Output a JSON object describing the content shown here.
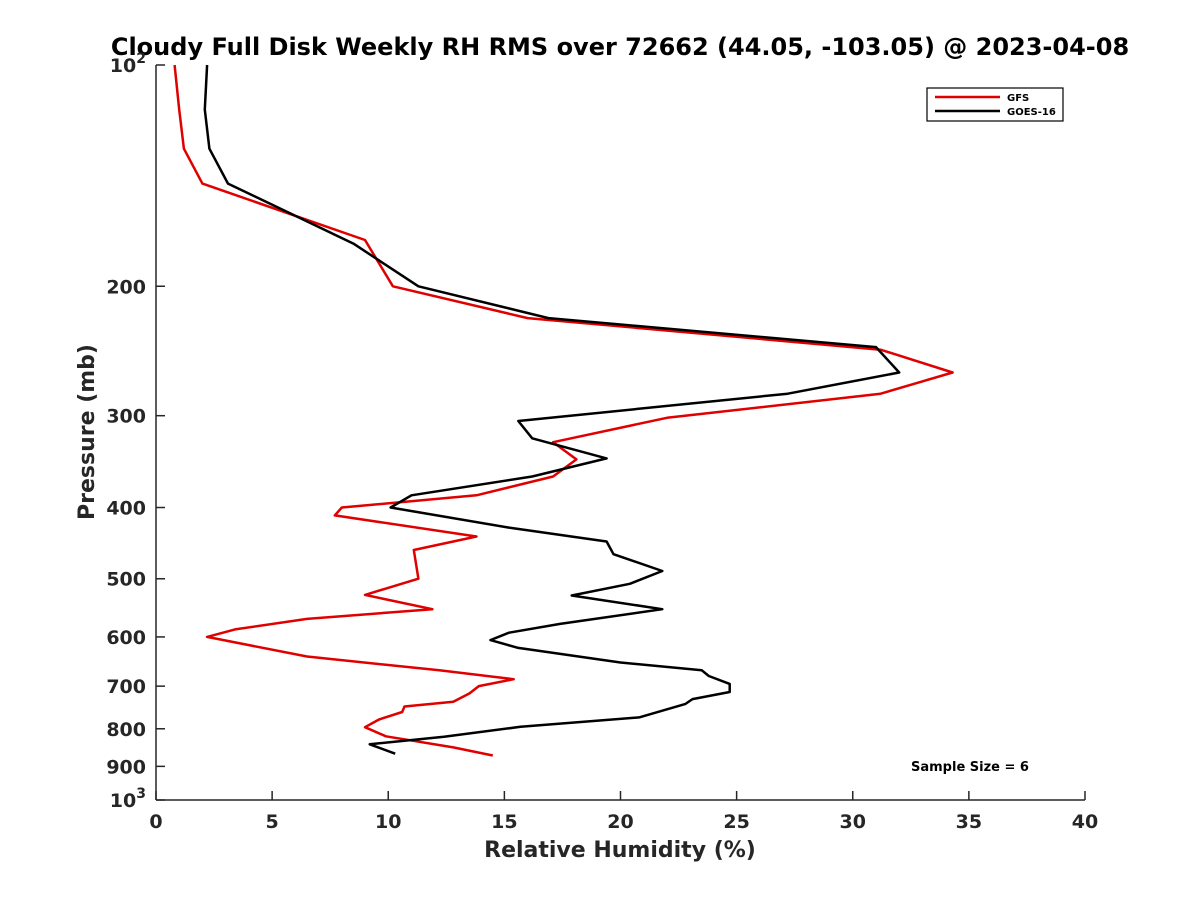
{
  "chart_data": {
    "type": "line",
    "title": "Cloudy Full Disk Weekly RH RMS over 72662 (44.05, -103.05) @ 2023-04-08",
    "xlabel": "Relative Humidity (%)",
    "ylabel": "Pressure (mb)",
    "xlim": [
      0,
      40
    ],
    "ylim": [
      100,
      1000
    ],
    "y_scale": "log",
    "y_reversed": true,
    "x_ticks": [
      "0",
      "5",
      "10",
      "15",
      "20",
      "25",
      "30",
      "35",
      "40"
    ],
    "y_ticks": [
      {
        "value": 100,
        "label": "10",
        "sup": "2"
      },
      {
        "value": 200,
        "label": "200"
      },
      {
        "value": 300,
        "label": "300"
      },
      {
        "value": 400,
        "label": "400"
      },
      {
        "value": 500,
        "label": "500"
      },
      {
        "value": 600,
        "label": "600"
      },
      {
        "value": 700,
        "label": "700"
      },
      {
        "value": 800,
        "label": "800"
      },
      {
        "value": 900,
        "label": "900"
      },
      {
        "value": 1000,
        "label": "10",
        "sup": "3"
      }
    ],
    "grid": false,
    "legend_position": "top-right",
    "annotation": "Sample Size = 6",
    "series": [
      {
        "name": "GFS",
        "color": "#e00000",
        "x": [
          0.8,
          1.0,
          1.2,
          2.0,
          9.0,
          10.2,
          16.0,
          31.2,
          34.3,
          31.2,
          22.0,
          17.1,
          18.1,
          17.1,
          13.8,
          8.0,
          7.7,
          13.8,
          11.1,
          11.3,
          9.0,
          11.9,
          6.5,
          3.4,
          2.2,
          6.5,
          12.2,
          15.4,
          13.9,
          13.5,
          12.8,
          10.7,
          10.6,
          9.6,
          9.0,
          9.9,
          12.8,
          14.5
        ],
        "y": [
          100,
          115,
          130,
          145,
          173,
          200,
          221,
          244,
          262,
          280,
          302,
          326,
          344,
          363,
          385,
          400,
          410,
          438,
          457,
          500,
          526,
          550,
          567,
          586,
          600,
          638,
          666,
          685,
          700,
          716,
          735,
          746,
          759,
          777,
          796,
          819,
          848,
          870
        ]
      },
      {
        "name": "GOES-16",
        "color": "#000000",
        "x": [
          2.2,
          2.1,
          2.3,
          3.1,
          8.5,
          11.3,
          16.9,
          31.0,
          32.0,
          27.2,
          15.6,
          16.2,
          19.4,
          16.2,
          11.0,
          10.1,
          15.2,
          19.4,
          19.7,
          21.8,
          20.4,
          17.9,
          21.8,
          17.4,
          15.2,
          14.4,
          15.6,
          20.0,
          23.5,
          23.8,
          24.7,
          24.7,
          23.1,
          22.8,
          20.8,
          15.7,
          12.4,
          9.2,
          10.3
        ],
        "y": [
          100,
          115,
          130,
          145,
          175,
          200,
          221,
          242,
          262,
          280,
          305,
          322,
          343,
          363,
          385,
          400,
          426,
          445,
          463,
          488,
          508,
          527,
          550,
          576,
          592,
          606,
          621,
          650,
          666,
          678,
          695,
          713,
          729,
          740,
          772,
          795,
          820,
          840,
          865
        ]
      }
    ]
  }
}
